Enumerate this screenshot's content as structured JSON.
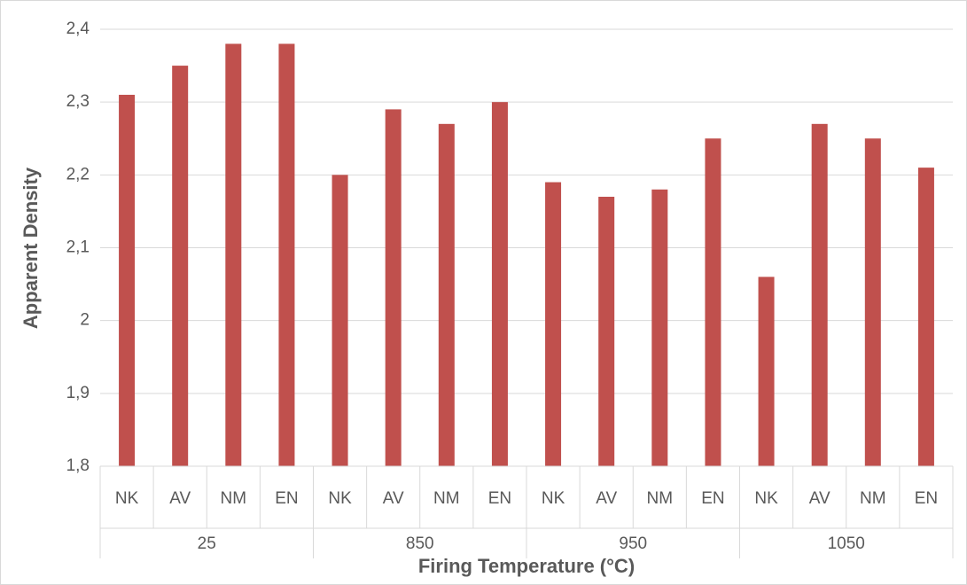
{
  "chart_data": {
    "type": "bar",
    "x_label": "Firing Temperature (°C)",
    "y_label": "Apparent Density",
    "groups": [
      "25",
      "850",
      "950",
      "1050"
    ],
    "categories": [
      "NK",
      "AV",
      "NM",
      "EN",
      "NK",
      "AV",
      "NM",
      "EN",
      "NK",
      "AV",
      "NM",
      "EN",
      "NK",
      "AV",
      "NM",
      "EN"
    ],
    "values": [
      2.31,
      2.35,
      2.38,
      2.38,
      2.2,
      2.29,
      2.27,
      2.3,
      2.19,
      2.17,
      2.18,
      2.25,
      2.06,
      2.27,
      2.25,
      2.21
    ],
    "color": "#c0504d",
    "ylim": [
      1.8,
      2.4
    ],
    "yticks": [
      {
        "value": 1.8,
        "label": "1,8"
      },
      {
        "value": 1.9,
        "label": "1,9"
      },
      2,
      {
        "value": 2.1,
        "label": "2,1"
      },
      {
        "value": 2.2,
        "label": "2,2"
      },
      {
        "value": 2.3,
        "label": "2,3"
      },
      {
        "value": 2.4,
        "label": "2,4"
      }
    ],
    "grid": true
  }
}
